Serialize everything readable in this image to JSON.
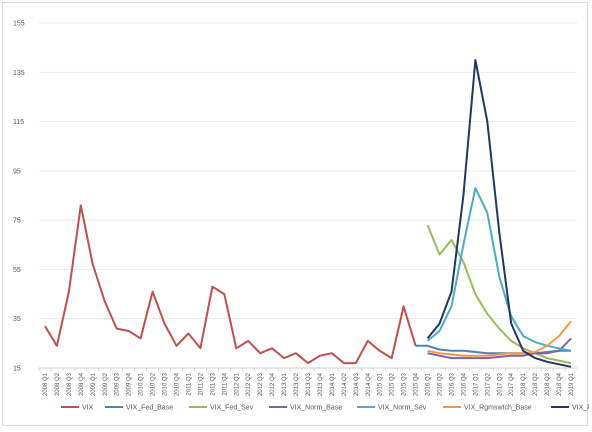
{
  "chart_data": {
    "type": "line",
    "ylim": [
      15,
      155
    ],
    "yticks": [
      15,
      35,
      55,
      75,
      95,
      115,
      135,
      155
    ],
    "grid": true,
    "legend_position": "bottom",
    "categories": [
      "2008 Q1",
      "2008 Q2",
      "2008 Q3",
      "2008 Q4",
      "2009 Q1",
      "2009 Q2",
      "2009 Q3",
      "2009 Q4",
      "2010 Q1",
      "2010 Q2",
      "2010 Q3",
      "2010 Q4",
      "2011 Q1",
      "2011 Q2",
      "2011 Q3",
      "2011 Q4",
      "2012 Q1",
      "2012 Q2",
      "2012 Q3",
      "2012 Q4",
      "2013 Q1",
      "2013 Q2",
      "2013 Q3",
      "2013 Q4",
      "2014 Q1",
      "2014 Q2",
      "2014 Q3",
      "2014 Q4",
      "2015 Q1",
      "2015 Q2",
      "2015 Q3",
      "2015 Q4",
      "2016 Q1",
      "2016 Q2",
      "2016 Q3",
      "2016 Q4",
      "2017 Q1",
      "2017 Q2",
      "2017 Q3",
      "2017 Q4",
      "2018 Q1",
      "2018 Q2",
      "2018 Q3",
      "2018 Q4",
      "2019 Q1"
    ],
    "series": [
      {
        "name": "VIX",
        "color": "#c0504d",
        "values": [
          32,
          24,
          46,
          81,
          57,
          42,
          31,
          30,
          27,
          46,
          33,
          24,
          29,
          23,
          48,
          45,
          23,
          26,
          21,
          23,
          19,
          21,
          17,
          20,
          21,
          17,
          17,
          26,
          22,
          19,
          40,
          24,
          null,
          null,
          null,
          null,
          null,
          null,
          null,
          null,
          null,
          null,
          null,
          null,
          null
        ]
      },
      {
        "name": "VIX_Fed_Base",
        "color": "#4f81bd",
        "values": [
          null,
          null,
          null,
          null,
          null,
          null,
          null,
          null,
          null,
          null,
          null,
          null,
          null,
          null,
          null,
          null,
          null,
          null,
          null,
          null,
          null,
          null,
          null,
          null,
          null,
          null,
          null,
          null,
          null,
          null,
          null,
          24,
          24,
          22.5,
          22,
          22,
          21.5,
          21,
          21,
          21,
          21,
          21,
          21.5,
          22,
          22
        ]
      },
      {
        "name": "VIX_Fed_Sev",
        "color": "#9bbb59",
        "values": [
          null,
          null,
          null,
          null,
          null,
          null,
          null,
          null,
          null,
          null,
          null,
          null,
          null,
          null,
          null,
          null,
          null,
          null,
          null,
          null,
          null,
          null,
          null,
          null,
          null,
          null,
          null,
          null,
          null,
          null,
          null,
          null,
          73,
          61,
          67,
          58,
          45,
          37,
          31,
          26,
          23,
          21,
          19,
          18,
          17
        ]
      },
      {
        "name": "VIX_Norm_Base",
        "color": "#8064a2",
        "values": [
          null,
          null,
          null,
          null,
          null,
          null,
          null,
          null,
          null,
          null,
          null,
          null,
          null,
          null,
          null,
          null,
          null,
          null,
          null,
          null,
          null,
          null,
          null,
          null,
          null,
          null,
          null,
          null,
          null,
          null,
          null,
          null,
          21,
          20,
          19,
          19,
          19,
          19,
          19.5,
          20,
          20,
          21,
          21,
          22,
          27
        ]
      },
      {
        "name": "VIX_Norm_Sev",
        "color": "#4bacc6",
        "values": [
          null,
          null,
          null,
          null,
          null,
          null,
          null,
          null,
          null,
          null,
          null,
          null,
          null,
          null,
          null,
          null,
          null,
          null,
          null,
          null,
          null,
          null,
          null,
          null,
          null,
          null,
          null,
          null,
          null,
          null,
          null,
          null,
          26,
          30,
          40,
          65,
          88,
          78,
          52,
          36,
          28,
          25.5,
          24,
          23,
          22
        ]
      },
      {
        "name": "VIX_Rgmswtch_Base",
        "color": "#f79646",
        "values": [
          null,
          null,
          null,
          null,
          null,
          null,
          null,
          null,
          null,
          null,
          null,
          null,
          null,
          null,
          null,
          null,
          null,
          null,
          null,
          null,
          null,
          null,
          null,
          null,
          null,
          null,
          null,
          null,
          null,
          null,
          null,
          null,
          22,
          21,
          20.5,
          20,
          20,
          20,
          20.5,
          21,
          21,
          21.5,
          24,
          28,
          34
        ]
      },
      {
        "name": "VIX_Rgmswtch_Sev",
        "color": "#1f3864",
        "values": [
          null,
          null,
          null,
          null,
          null,
          null,
          null,
          null,
          null,
          null,
          null,
          null,
          null,
          null,
          null,
          null,
          null,
          null,
          null,
          null,
          null,
          null,
          null,
          null,
          null,
          null,
          null,
          null,
          null,
          null,
          null,
          null,
          27,
          33,
          46,
          85,
          140,
          115,
          70,
          33,
          22,
          19,
          17.5,
          16.5,
          15.5
        ]
      }
    ]
  }
}
